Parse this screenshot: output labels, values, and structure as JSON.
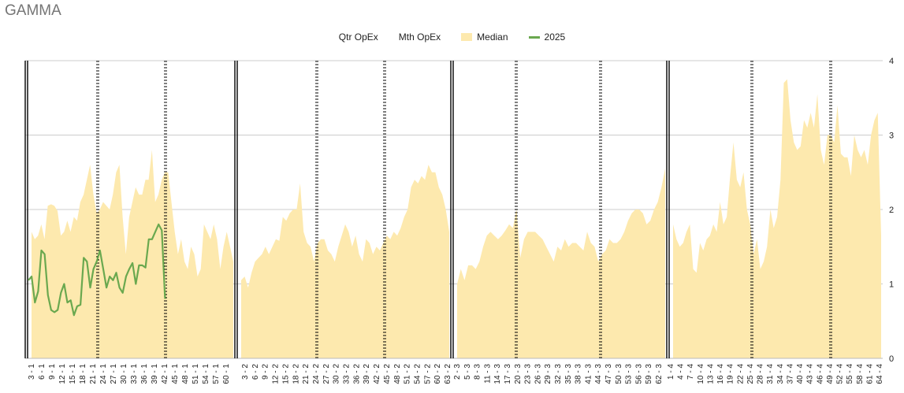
{
  "chart_data": {
    "type": "area",
    "title": "GAMMA",
    "legend": {
      "placement": "top",
      "items": [
        {
          "name": "Qtr OpEx",
          "kind": "none",
          "color": "#000000"
        },
        {
          "name": "Mth OpEx",
          "kind": "none",
          "color": "#000000"
        },
        {
          "name": "Median",
          "kind": "area",
          "color": "#fde9ae"
        },
        {
          "name": "2025",
          "kind": "line",
          "color": "#6aa84f"
        }
      ]
    },
    "ylim": [
      0,
      4
    ],
    "y_ticks": [
      0,
      1,
      2,
      3,
      4
    ],
    "y_tick_labels": [
      "0",
      "1",
      "2",
      "3",
      "4"
    ],
    "grid": true,
    "x_tick_labels": [
      "3 - 1",
      "6 - 1",
      "9 - 1",
      "12 - 1",
      "15 - 1",
      "18 - 1",
      "21 - 1",
      "24 - 1",
      "27 - 1",
      "30 - 1",
      "33 - 1",
      "36 - 1",
      "39 - 1",
      "42 - 1",
      "45 - 1",
      "48 - 1",
      "51 - 1",
      "54 - 1",
      "57 - 1",
      "60 - 1",
      "3 - 2",
      "6 - 2",
      "9 - 2",
      "12 - 2",
      "15 - 2",
      "18 - 2",
      "21 - 2",
      "24 - 2",
      "27 - 2",
      "30 - 2",
      "33 - 2",
      "36 - 2",
      "39 - 2",
      "42 - 2",
      "45 - 2",
      "48 - 2",
      "51 - 2",
      "54 - 2",
      "57 - 2",
      "60 - 2",
      "63 - 2",
      "2 - 3",
      "5 - 3",
      "8 - 3",
      "11 - 3",
      "14 - 3",
      "17 - 3",
      "20 - 3",
      "23 - 3",
      "26 - 3",
      "29 - 3",
      "32 - 3",
      "35 - 3",
      "38 - 3",
      "41 - 3",
      "44 - 3",
      "47 - 3",
      "50 - 3",
      "53 - 3",
      "56 - 3",
      "59 - 3",
      "62 - 3",
      "1 - 4",
      "4 - 4",
      "7 - 4",
      "10 - 4",
      "13 - 4",
      "16 - 4",
      "19 - 4",
      "22 - 4",
      "25 - 4",
      "28 - 4",
      "31 - 4",
      "34 - 4",
      "37 - 4",
      "40 - 4",
      "43 - 4",
      "46 - 4",
      "49 - 4",
      "52 - 4",
      "55 - 4",
      "58 - 4",
      "61 - 4",
      "64 - 4"
    ],
    "qtr_opex_boundaries": [
      "1 - 1",
      "1 - 2",
      "1 - 3",
      "1 - 4"
    ],
    "mth_opex_boundaries": [
      "22 - 1",
      "43 - 1",
      "26 - 2",
      "46 - 2",
      "19 - 3",
      "44 - 3",
      "25 - 4",
      "49 - 4"
    ],
    "median": {
      "name": "Median",
      "values": [
        [
          1.7,
          1.6,
          1.65,
          1.8,
          1.6,
          2.05,
          2.07,
          2.05,
          1.98,
          1.65,
          1.7,
          1.85,
          1.7,
          1.9,
          1.85,
          2.1,
          2.2,
          2.4,
          2.6,
          2.2,
          1.95,
          2.0,
          2.1,
          2.05,
          2.0,
          2.2,
          2.5,
          2.6,
          1.9,
          1.4,
          1.9,
          2.1,
          2.3,
          2.2,
          2.2,
          2.4,
          2.4,
          2.8,
          2.1,
          2.2,
          2.4,
          2.5,
          2.5,
          2.1,
          1.7,
          1.4,
          1.6,
          1.3,
          1.2,
          1.5,
          1.4,
          1.1,
          1.2,
          1.8,
          1.7,
          1.6,
          1.8,
          1.6,
          1.2,
          1.5,
          1.7,
          1.5,
          1.3
        ],
        [
          1.05,
          1.1,
          0.95,
          1.15,
          1.3,
          1.35,
          1.4,
          1.5,
          1.4,
          1.5,
          1.6,
          1.58,
          1.9,
          1.85,
          1.95,
          2.0,
          2.0,
          2.35,
          1.7,
          1.55,
          1.5,
          1.3,
          1.55,
          1.6,
          1.6,
          1.45,
          1.4,
          1.3,
          1.5,
          1.65,
          1.8,
          1.7,
          1.5,
          1.65,
          1.4,
          1.3,
          1.6,
          1.55,
          1.4,
          1.5,
          1.45,
          1.55,
          1.65,
          1.6,
          1.7,
          1.65,
          1.75,
          1.9,
          2.0,
          2.3,
          2.4,
          2.35,
          2.45,
          2.4,
          2.6,
          2.5,
          2.5,
          2.3,
          2.2,
          2.0,
          1.7
        ],
        [
          1.0,
          1.2,
          1.05,
          1.25,
          1.25,
          1.2,
          1.3,
          1.5,
          1.65,
          1.7,
          1.65,
          1.6,
          1.65,
          1.72,
          1.8,
          1.75,
          2.0,
          1.35,
          1.6,
          1.7,
          1.7,
          1.7,
          1.65,
          1.6,
          1.5,
          1.4,
          1.3,
          1.5,
          1.45,
          1.6,
          1.5,
          1.55,
          1.55,
          1.5,
          1.45,
          1.7,
          1.55,
          1.5,
          1.3,
          1.4,
          1.45,
          1.6,
          1.55,
          1.55,
          1.6,
          1.7,
          1.85,
          1.95,
          2.0,
          2.0,
          1.95,
          1.8,
          1.85,
          2.0,
          2.1,
          2.3,
          2.55
        ],
        [
          1.8,
          1.6,
          1.5,
          1.55,
          1.7,
          1.8,
          1.2,
          1.15,
          1.55,
          1.45,
          1.6,
          1.65,
          1.8,
          1.7,
          2.1,
          1.8,
          1.9,
          2.45,
          2.9,
          2.4,
          2.3,
          2.5,
          2.0,
          1.8,
          1.4,
          1.6,
          1.2,
          1.3,
          1.5,
          2.0,
          1.75,
          1.9,
          2.4,
          3.7,
          3.75,
          3.2,
          2.9,
          2.8,
          2.85,
          3.2,
          3.1,
          3.3,
          3.1,
          3.55,
          2.8,
          2.6,
          3.0,
          3.0,
          2.9,
          3.4,
          2.75,
          2.7,
          2.7,
          2.45,
          3.0,
          2.8,
          2.7,
          2.8,
          2.6,
          3.0,
          3.2,
          3.3,
          1.65
        ]
      ]
    },
    "series_2025": {
      "name": "2025",
      "segment": 1,
      "start_index": 0,
      "values": [
        1.05,
        1.1,
        0.75,
        0.9,
        1.45,
        1.4,
        0.85,
        0.65,
        0.62,
        0.65,
        0.88,
        1.0,
        0.75,
        0.78,
        0.58,
        0.7,
        0.72,
        1.35,
        1.3,
        0.95,
        1.2,
        1.3,
        1.45,
        1.2,
        0.95,
        1.1,
        1.05,
        1.15,
        0.95,
        0.88,
        1.1,
        1.2,
        1.28,
        1.0,
        1.25,
        1.25,
        1.22,
        1.6,
        1.6,
        1.7,
        1.8,
        1.72,
        0.8
      ]
    },
    "colors": {
      "median_fill": "#fde9ae",
      "line_2025": "#6aa84f",
      "gridline": "#cccccc",
      "qtr_line": "#000000",
      "mth_line": "#000000"
    }
  }
}
